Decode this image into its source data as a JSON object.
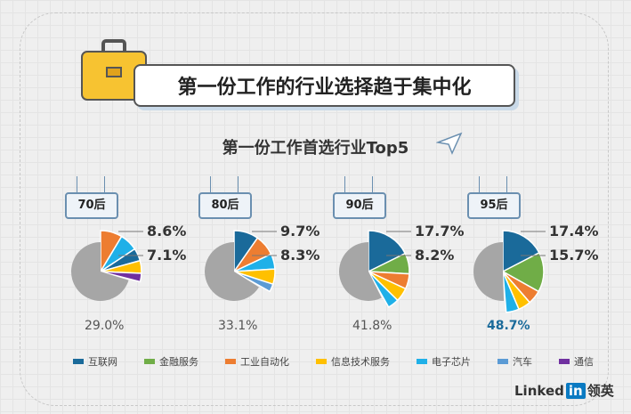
{
  "title": "第一份工作的行业选择趋于集中化",
  "chart_data": {
    "type": "pie",
    "title": "第一份工作首选行业Top5",
    "legend": [
      {
        "name": "互联网",
        "color": "#1a6a9a"
      },
      {
        "name": "金融服务",
        "color": "#70ad47"
      },
      {
        "name": "工业自动化",
        "color": "#ed7d31"
      },
      {
        "name": "信息技术服务",
        "color": "#ffc000"
      },
      {
        "name": "电子芯片",
        "color": "#1fb0e8"
      },
      {
        "name": "汽车",
        "color": "#5b9bd5"
      },
      {
        "name": "通信",
        "color": "#7030a0"
      }
    ],
    "legend_position": "bottom",
    "pies": [
      {
        "label": "70后",
        "total": "29.0%",
        "labels": [
          "8.6%",
          "7.1%"
        ],
        "slices": [
          {
            "ind": 2,
            "v": 8.6
          },
          {
            "ind": 4,
            "v": 7.1
          },
          {
            "ind": 0,
            "v": 5.0
          },
          {
            "ind": 3,
            "v": 5.0
          },
          {
            "ind": 6,
            "v": 3.3
          }
        ]
      },
      {
        "label": "80后",
        "total": "33.1%",
        "labels": [
          "9.7%",
          "8.3%"
        ],
        "slices": [
          {
            "ind": 0,
            "v": 9.7
          },
          {
            "ind": 2,
            "v": 8.3
          },
          {
            "ind": 4,
            "v": 6.0
          },
          {
            "ind": 3,
            "v": 6.0
          },
          {
            "ind": 5,
            "v": 3.1
          }
        ]
      },
      {
        "label": "90后",
        "total": "41.8%",
        "labels": [
          "17.7%",
          "8.2%"
        ],
        "slices": [
          {
            "ind": 0,
            "v": 17.7
          },
          {
            "ind": 1,
            "v": 8.2
          },
          {
            "ind": 2,
            "v": 6.0
          },
          {
            "ind": 3,
            "v": 5.5
          },
          {
            "ind": 4,
            "v": 4.4
          }
        ]
      },
      {
        "label": "95后",
        "total": "48.7%",
        "labels": [
          "17.4%",
          "15.7%"
        ],
        "slices": [
          {
            "ind": 0,
            "v": 17.4
          },
          {
            "ind": 1,
            "v": 15.7
          },
          {
            "ind": 2,
            "v": 5.5
          },
          {
            "ind": 3,
            "v": 5.0
          },
          {
            "ind": 4,
            "v": 5.1
          }
        ]
      }
    ],
    "remainder_color": "#a6a6a6",
    "highlight_color": "#1a6a9a"
  },
  "logo": {
    "brand": "Linked",
    "in": "in",
    "cn": "领英"
  }
}
